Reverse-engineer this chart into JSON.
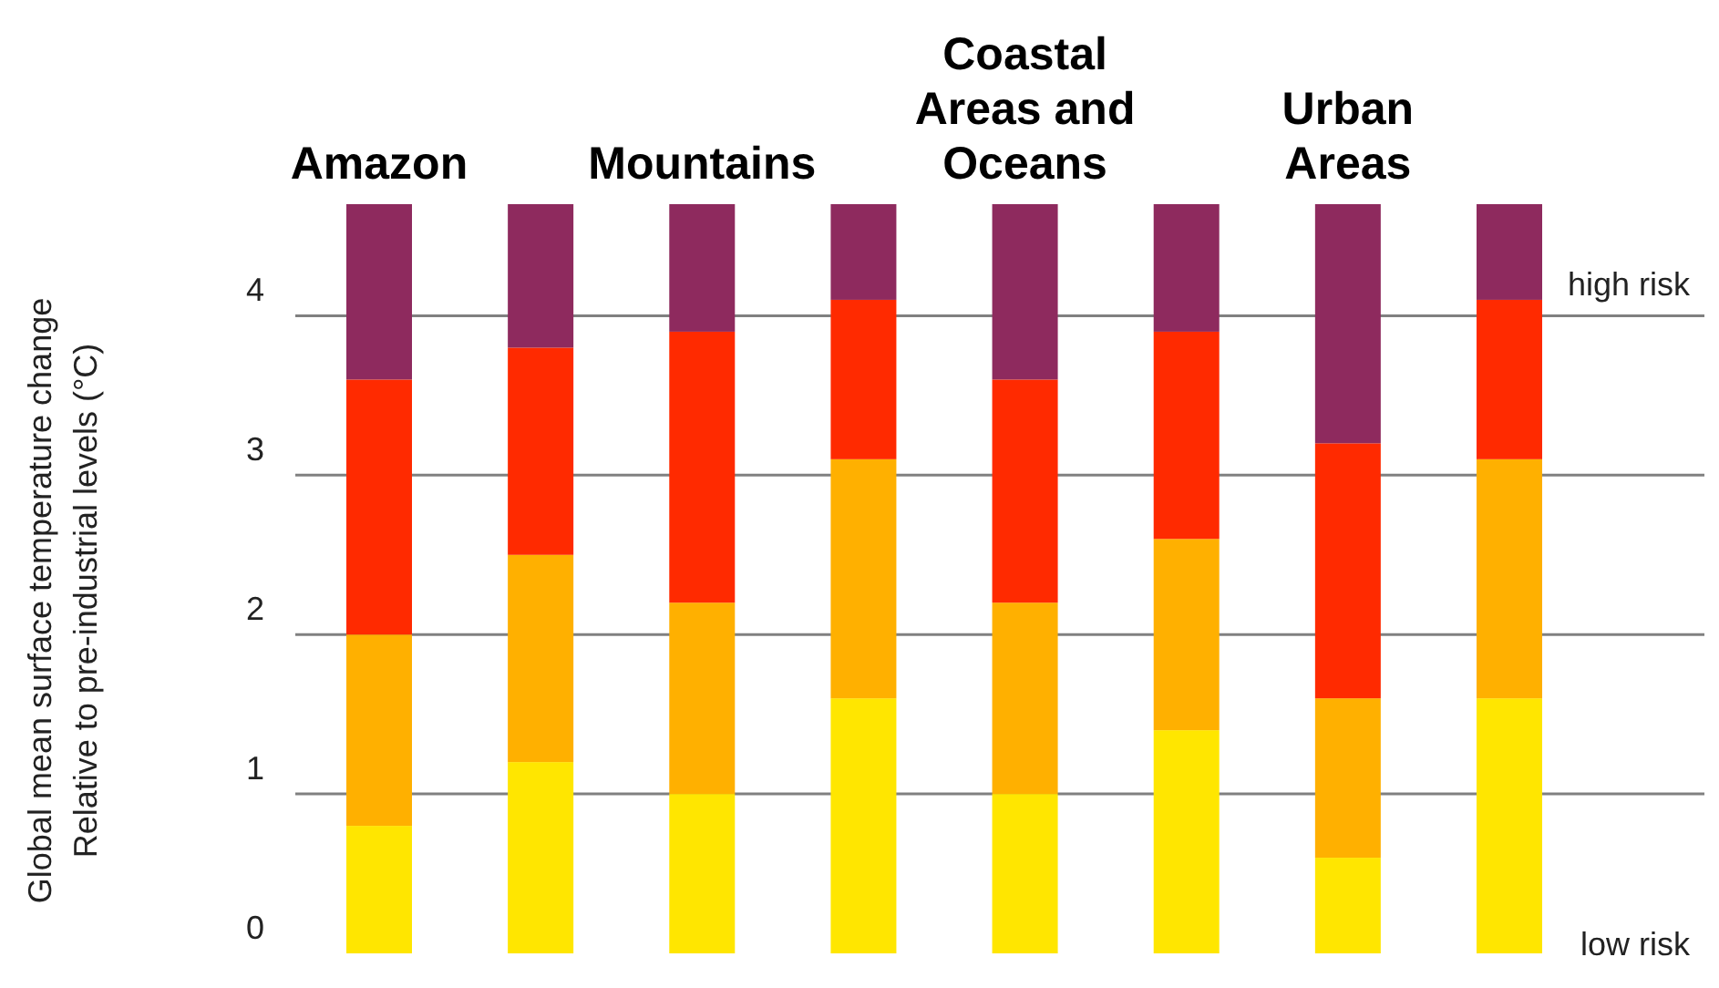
{
  "chart_data": {
    "type": "bar",
    "stacked": true,
    "ylabel": "Global mean surface temperature change\nRelative to pre-industrial levels (°C)",
    "categories": [
      "Amazon",
      null,
      "Mountains",
      null,
      "Coastal Areas and Oceans",
      null,
      "Urban Areas",
      null
    ],
    "series": [
      {
        "color": "#ffe600",
        "values": [
          0.8,
          1.2,
          1.0,
          1.6,
          1.0,
          1.4,
          0.6,
          1.6
        ]
      },
      {
        "color": "#ffb000",
        "values": [
          1.2,
          1.3,
          1.2,
          1.5,
          1.2,
          1.2,
          1.0,
          1.5
        ]
      },
      {
        "color": "#ff2a00",
        "values": [
          1.6,
          1.3,
          1.7,
          1.0,
          1.4,
          1.3,
          1.6,
          1.0
        ]
      },
      {
        "color": "#8e2a5e",
        "values": [
          1.1,
          0.9,
          0.8,
          0.6,
          1.1,
          0.8,
          1.5,
          0.6
        ]
      }
    ],
    "ylim": [
      0,
      4.7
    ],
    "yticks": [
      0,
      1,
      2,
      3,
      4
    ],
    "grid": "y",
    "annotations": [
      "high risk",
      "low risk"
    ]
  }
}
